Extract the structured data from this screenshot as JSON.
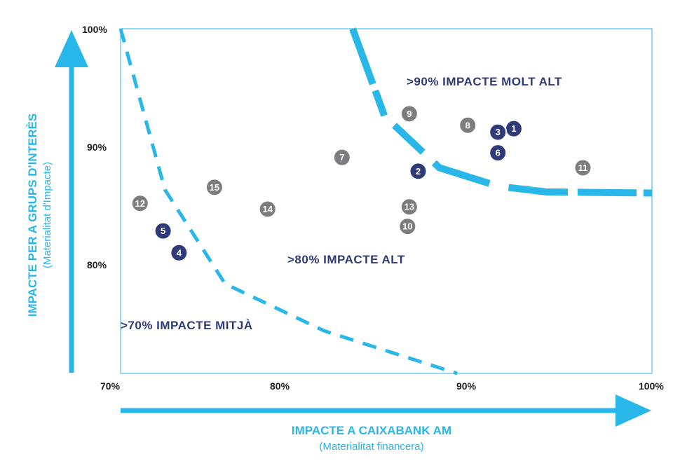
{
  "chart_data": {
    "type": "scatter",
    "xlabel": "IMPACTE A CAIXABANK AM",
    "xlabel_sub": "(Materialitat financera)",
    "ylabel": "IMPACTE PER A GRUPS D'INTERÈS",
    "ylabel_sub": "(Materialitat d'Impacte)",
    "xlim": [
      70,
      100
    ],
    "ylim": [
      70,
      100
    ],
    "x_ticks": [
      "70%",
      "80%",
      "90%",
      "100%"
    ],
    "y_ticks": [
      "80%",
      "90%",
      "100%"
    ],
    "grid": false,
    "colors": {
      "accent": "#29b6e8",
      "dark_point": "#2f3a78",
      "grey_point": "#7d7d7f",
      "zone_text": "#2f3a78"
    },
    "zones": [
      {
        "label": ">90% IMPACTE MOLT ALT"
      },
      {
        "label": ">80% IMPACTE ALT"
      },
      {
        "label": ">70% IMPACTE MITJÀ"
      }
    ],
    "boundaries": [
      {
        "name": "molt_alt",
        "points": [
          [
            83.1,
            100
          ],
          [
            84.9,
            92.4
          ],
          [
            88,
            87.9
          ],
          [
            91.3,
            86.3
          ],
          [
            94,
            85.8
          ],
          [
            100,
            85.7
          ]
        ]
      },
      {
        "name": "mitja",
        "points": [
          [
            70,
            100
          ],
          [
            72.5,
            86
          ],
          [
            75.9,
            77.8
          ],
          [
            81.5,
            73.7
          ],
          [
            89,
            70
          ]
        ]
      }
    ],
    "points": [
      {
        "label": "1",
        "x": 92.2,
        "y": 91.3,
        "color": "dark"
      },
      {
        "label": "2",
        "x": 86.8,
        "y": 87.6,
        "color": "dark"
      },
      {
        "label": "3",
        "x": 91.3,
        "y": 91.0,
        "color": "dark"
      },
      {
        "label": "4",
        "x": 73.3,
        "y": 80.5,
        "color": "dark"
      },
      {
        "label": "5",
        "x": 72.4,
        "y": 82.4,
        "color": "dark"
      },
      {
        "label": "6",
        "x": 91.3,
        "y": 89.2,
        "color": "dark"
      },
      {
        "label": "7",
        "x": 82.5,
        "y": 88.8,
        "color": "grey"
      },
      {
        "label": "8",
        "x": 89.6,
        "y": 91.6,
        "color": "grey"
      },
      {
        "label": "9",
        "x": 86.3,
        "y": 92.6,
        "color": "grey"
      },
      {
        "label": "10",
        "x": 86.2,
        "y": 82.8,
        "color": "grey"
      },
      {
        "label": "11",
        "x": 96.1,
        "y": 87.9,
        "color": "grey"
      },
      {
        "label": "12",
        "x": 71.1,
        "y": 84.8,
        "color": "grey"
      },
      {
        "label": "13",
        "x": 86.3,
        "y": 84.5,
        "color": "grey"
      },
      {
        "label": "14",
        "x": 78.3,
        "y": 84.3,
        "color": "grey"
      },
      {
        "label": "15",
        "x": 75.3,
        "y": 86.2,
        "color": "grey"
      }
    ]
  }
}
